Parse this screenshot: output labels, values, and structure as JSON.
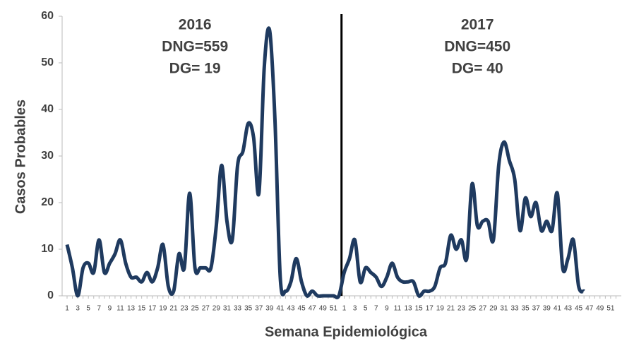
{
  "chart_data": {
    "type": "line",
    "y_label": "Casos Probables",
    "x_label": "Semana Epidemiológica",
    "annotations": [
      {
        "lines": [
          "2016",
          "DNG=559",
          "DG= 19"
        ]
      },
      {
        "lines": [
          "2017",
          "DNG=450",
          "DG= 40"
        ]
      }
    ],
    "categories": [
      "1",
      null,
      "3",
      null,
      "5",
      null,
      "7",
      null,
      "9",
      null,
      "11",
      null,
      "13",
      null,
      "15",
      null,
      "17",
      null,
      "19",
      null,
      "21",
      null,
      "23",
      null,
      "25",
      null,
      "27",
      null,
      "29",
      null,
      "31",
      null,
      "33",
      null,
      "35",
      null,
      "37",
      null,
      "39",
      null,
      "41",
      null,
      "43",
      null,
      "45",
      null,
      "47",
      null,
      "49",
      null,
      "51",
      null,
      "1",
      null,
      "3",
      null,
      "5",
      null,
      "7",
      null,
      "9",
      null,
      "11",
      null,
      "13",
      null,
      "15",
      null,
      "17",
      null,
      "19",
      null,
      "21",
      null,
      "23",
      null,
      "25",
      null,
      "27",
      null,
      "29",
      null,
      "31",
      null,
      "33",
      null,
      "35",
      null,
      "37",
      null,
      "39",
      null,
      "41",
      null,
      "43",
      null,
      "45",
      null,
      "47",
      null,
      "49",
      null,
      "51",
      null
    ],
    "series": [
      {
        "name": "Casos",
        "color": "#1f3a5f",
        "values": [
          11,
          6,
          0,
          6,
          7,
          5,
          12,
          5,
          7,
          9,
          12,
          7,
          4,
          4,
          3,
          5,
          3,
          6,
          11,
          2,
          1,
          9,
          6,
          22,
          6,
          6,
          6,
          6,
          15,
          28,
          16,
          12,
          28,
          31,
          37,
          34,
          22,
          49,
          57,
          38,
          4,
          1,
          3,
          8,
          3,
          0,
          1,
          0,
          0,
          0,
          0,
          0,
          5,
          8,
          12,
          3,
          6,
          5,
          4,
          2,
          4,
          7,
          4,
          3,
          3,
          3,
          0,
          1,
          1,
          2,
          6,
          7,
          13,
          10,
          12,
          8,
          24,
          15,
          16,
          16,
          12,
          28,
          33,
          29,
          25,
          14,
          21,
          17,
          20,
          14,
          16,
          14,
          22,
          6,
          8,
          12,
          2,
          1,
          null,
          null,
          null,
          null,
          null,
          null
        ]
      }
    ],
    "ylim": [
      0,
      60
    ],
    "yticks": [
      0,
      10,
      20,
      30,
      40,
      50,
      60
    ]
  }
}
